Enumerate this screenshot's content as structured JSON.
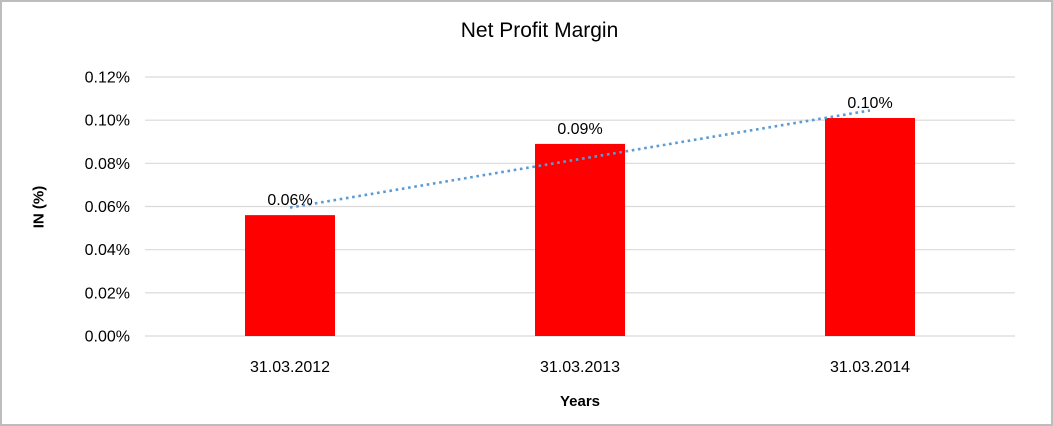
{
  "frame": {
    "background": "#ffffff",
    "border_color": "#bdbdbd"
  },
  "chart_data": {
    "type": "bar",
    "title": "Net Profit Margin",
    "xlabel": "Years",
    "ylabel": "IN (%)",
    "categories": [
      "31.03.2012",
      "31.03.2013",
      "31.03.2014"
    ],
    "series": [
      {
        "name": "Net Profit Margin",
        "values": [
          0.056,
          0.089,
          0.101
        ]
      }
    ],
    "data_labels": [
      "0.06%",
      "0.09%",
      "0.10%"
    ],
    "yticks": [
      {
        "value": 0.0,
        "label": "0.00%"
      },
      {
        "value": 0.02,
        "label": "0.02%"
      },
      {
        "value": 0.04,
        "label": "0.04%"
      },
      {
        "value": 0.06,
        "label": "0.06%"
      },
      {
        "value": 0.08,
        "label": "0.08%"
      },
      {
        "value": 0.1,
        "label": "0.10%"
      },
      {
        "value": 0.12,
        "label": "0.12%"
      }
    ],
    "ylim": [
      0,
      0.12
    ],
    "grid": "horizontal",
    "gridline_color": "#d9d9d9",
    "bar_color": "#ff0000",
    "legend": "none",
    "trendline": {
      "style": "dotted",
      "color": "#5b9bd5",
      "start_value": 0.0595,
      "end_value": 0.1045
    }
  }
}
